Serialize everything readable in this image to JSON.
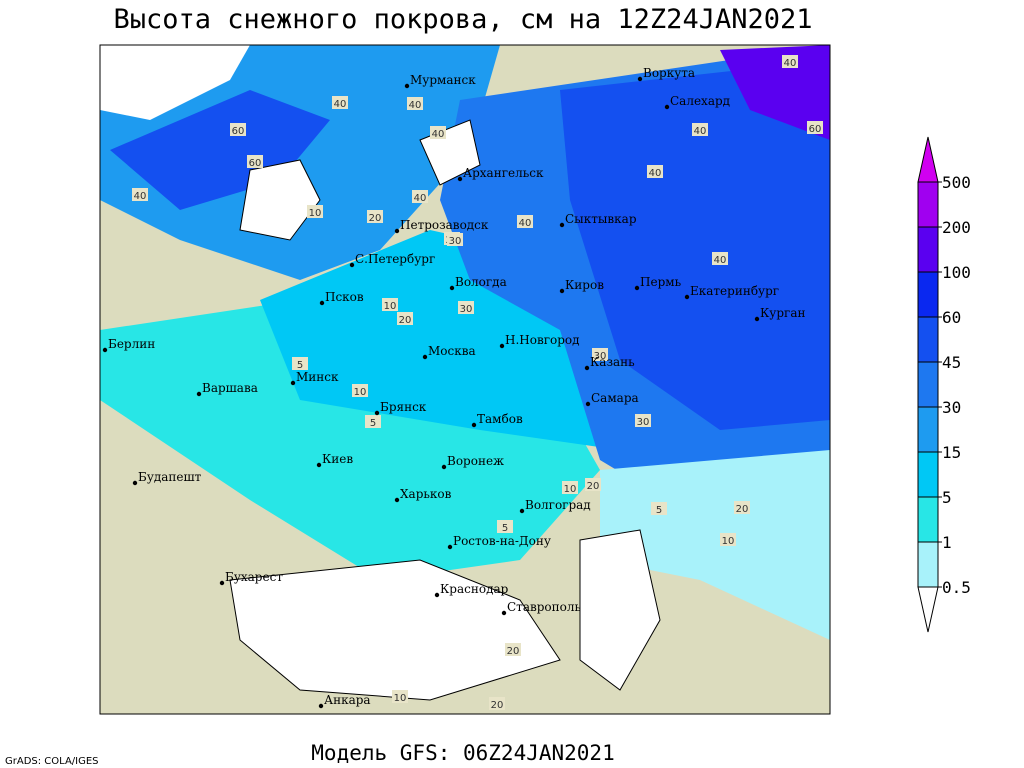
{
  "header": {
    "title": "Высота снежного покрова, см на 12Z24JAN2021"
  },
  "footer": {
    "model": "Модель GFS: 06Z24JAN2021",
    "credit": "GrADS: COLA/IGES"
  },
  "cities": [
    "Мурманск",
    "Воркута",
    "Салехард",
    "Архангельск",
    "Петрозаводск",
    "Сыктывкар",
    "С.Петербург",
    "Вологда",
    "Киров",
    "Пермь",
    "Екатеринбург",
    "Курган",
    "Псков",
    "Н.Новгород",
    "Казань",
    "Москва",
    "Берлин",
    "Минск",
    "Варшава",
    "Самара",
    "Брянск",
    "Тамбов",
    "Воронеж",
    "Киев",
    "Будапешт",
    "Харьков",
    "Волгоград",
    "Ростов-на-Дону",
    "Бухарест",
    "Краснодар",
    "Ставрополь",
    "Анкара"
  ],
  "contour_labels": [
    "40",
    "60",
    "40",
    "40",
    "40",
    "60",
    "40",
    "20",
    "10",
    "20",
    "30",
    "40",
    "40",
    "40",
    "40",
    "40",
    "10",
    "20",
    "30",
    "5",
    "10",
    "5",
    "30",
    "30",
    "10",
    "20",
    "5",
    "10",
    "20",
    "5",
    "20",
    "10",
    "20",
    "60",
    "40"
  ],
  "colorbar": {
    "levels": [
      0.5,
      1,
      5,
      15,
      30,
      45,
      60,
      100,
      200,
      500
    ],
    "colors": [
      "#ffffff",
      "#a8f2fa",
      "#28e6e6",
      "#00c8f5",
      "#1e9bf0",
      "#1e78f0",
      "#1450f0",
      "#0a28f0",
      "#5a00f0",
      "#a000f0",
      "#d000f0"
    ]
  }
}
